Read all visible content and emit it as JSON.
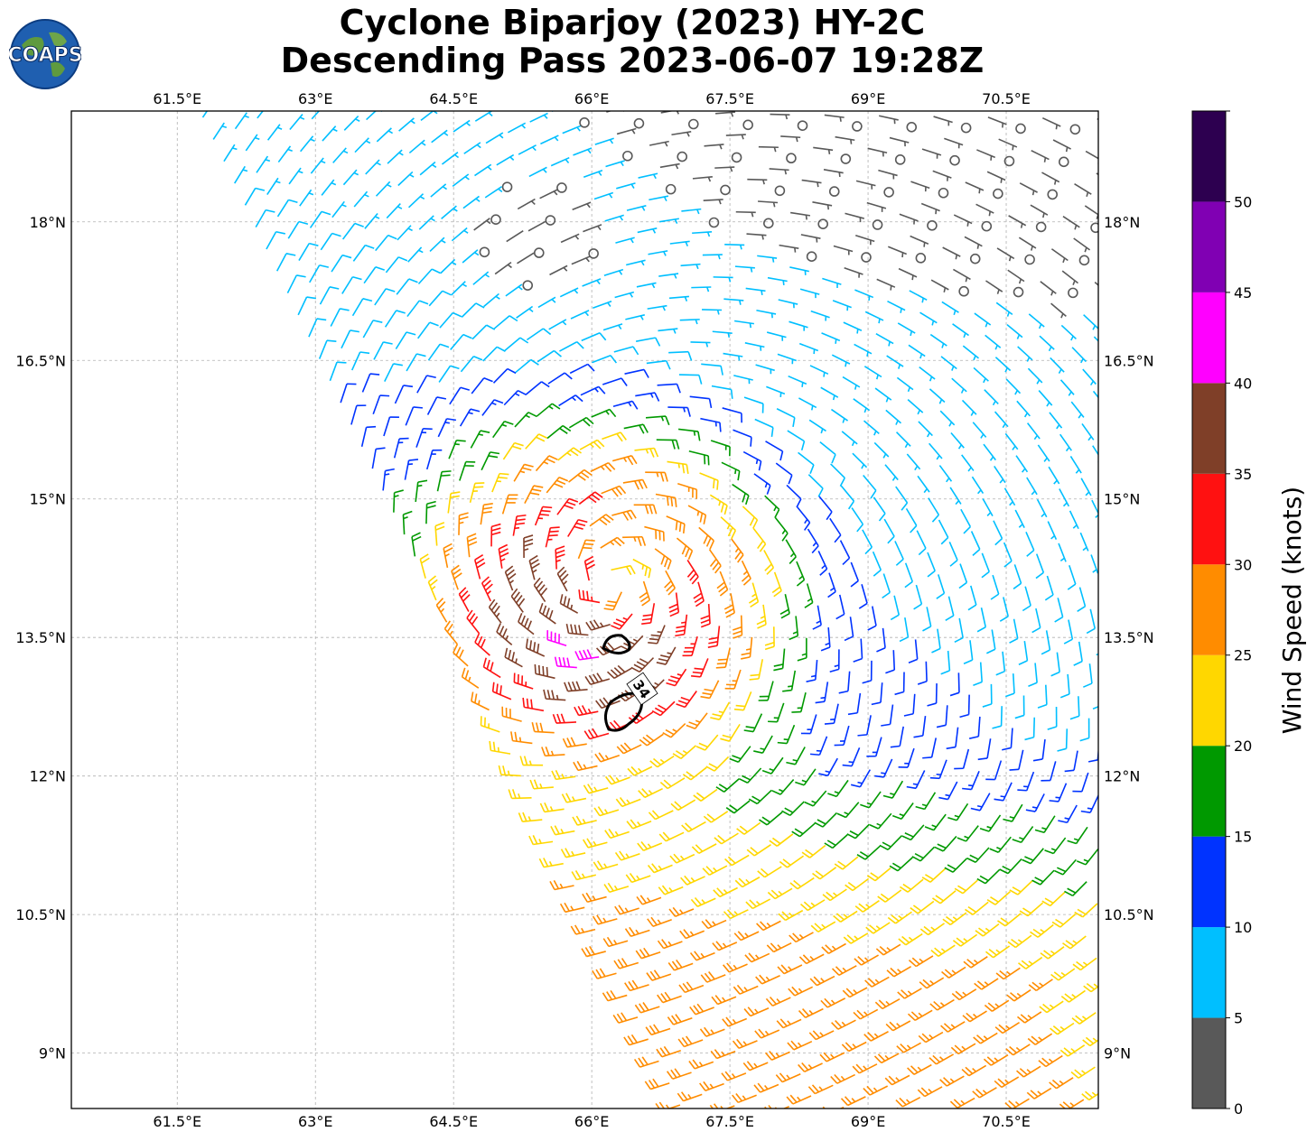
{
  "chart_data": {
    "type": "wind_barb_map",
    "title_line1": "Cyclone Biparjoy (2023) HY-2C",
    "title_line2": "Descending Pass 2023-06-07 19:28Z",
    "logo_text": "COAPS",
    "x_ticks": [
      "61.5°E",
      "63°E",
      "64.5°E",
      "66°E",
      "67.5°E",
      "69°E",
      "70.5°E"
    ],
    "x_tick_values": [
      61.5,
      63,
      64.5,
      66,
      67.5,
      69,
      70.5
    ],
    "y_ticks": [
      "18°N",
      "16.5°N",
      "15°N",
      "13.5°N",
      "12°N",
      "10.5°N",
      "9°N"
    ],
    "y_tick_values": [
      18,
      16.5,
      15,
      13.5,
      12,
      10.5,
      9
    ],
    "lon_range": [
      60.35,
      71.5
    ],
    "lat_range": [
      8.4,
      19.2
    ],
    "cyclone_center": {
      "lon": 66.2,
      "lat": 14.1
    },
    "contour_label": "34",
    "colorbar": {
      "label": "Wind Speed (knots)",
      "bounds": [
        0,
        5,
        10,
        15,
        20,
        25,
        30,
        35,
        40,
        45,
        50,
        55
      ],
      "tick_labels": [
        "0",
        "5",
        "10",
        "15",
        "20",
        "25",
        "30",
        "35",
        "40",
        "45",
        "50"
      ],
      "colors": [
        "#595959",
        "#00bfff",
        "#0033ff",
        "#009900",
        "#ffd700",
        "#ff8c00",
        "#ff1111",
        "#7f3f28",
        "#ff00ff",
        "#8000b3",
        "#2d0050"
      ]
    }
  }
}
